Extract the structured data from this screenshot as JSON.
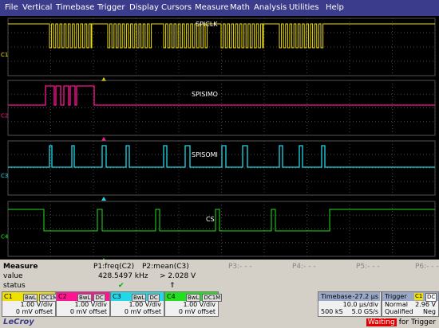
{
  "menu": [
    "File",
    "Vertical",
    "Timebase",
    "Trigger",
    "Display",
    "Cursors",
    "Measure",
    "Math",
    "Analysis",
    "Utilities",
    "Help"
  ],
  "traces": [
    {
      "channel": "C1",
      "label": "SPICLK"
    },
    {
      "channel": "C2",
      "label": "SPISIMO"
    },
    {
      "channel": "C3",
      "label": "SPISOMI"
    },
    {
      "channel": "C4",
      "label": "CS"
    }
  ],
  "measure": {
    "header": [
      "Measure",
      "P1:freq(C2)",
      "P2:mean(C3)",
      "P3:- - -",
      "P4:- - -",
      "P5:- - -",
      "P6:- - -"
    ],
    "value": [
      "value",
      "428.5497 kHz",
      "> 2.028 V"
    ],
    "status": [
      "status",
      "✔",
      "⇑"
    ]
  },
  "channels": [
    {
      "name": "C1",
      "bw": "BwL",
      "coupling": "DC1M",
      "scale": "1.00 V/div",
      "offset": "0 mV offset"
    },
    {
      "name": "C2",
      "bw": "BwL",
      "coupling": "DC",
      "scale": "1.00 V/div",
      "offset": "0 mV offset"
    },
    {
      "name": "C3",
      "bw": "BwL",
      "coupling": "DC",
      "scale": "1.00 V/div",
      "offset": "0 mV offset"
    },
    {
      "name": "C4",
      "bw": "BwL",
      "coupling": "DC1M",
      "scale": "1.00 V/div",
      "offset": "0 mV offset"
    }
  ],
  "timebase": {
    "title": "Timebase",
    "delay": "-27.2 µs",
    "scale": "10.0 µs/div",
    "samples": "500 kS",
    "rate": "5.0 GS/s"
  },
  "trigger": {
    "title": "Trigger",
    "source": "C1",
    "coupling": "DC",
    "mode": "Normal",
    "level": "2.96 V",
    "type": "Qualified",
    "slope": "Neg"
  },
  "footer": {
    "brand": "LeCroy",
    "status_word": "Waiting",
    "status_rest": "for Trigger"
  }
}
